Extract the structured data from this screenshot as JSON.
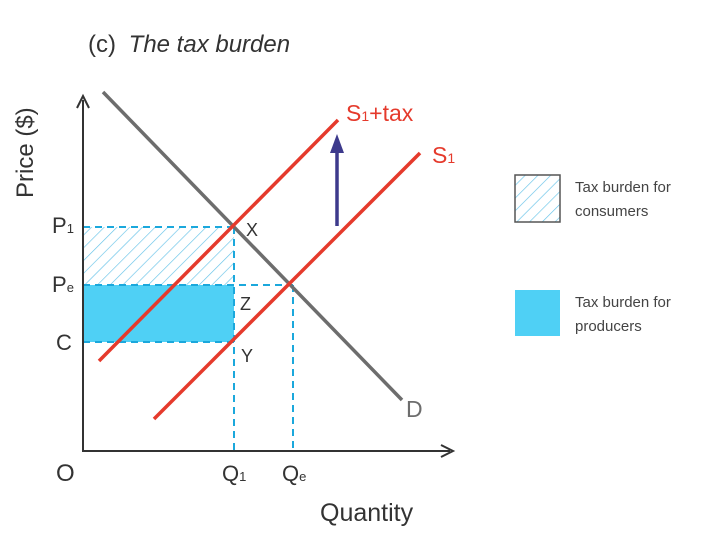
{
  "title": {
    "prefix": "(c)",
    "text": "The tax burden"
  },
  "axes": {
    "y_label": "Price ($)",
    "x_label": "Quantity",
    "origin_label": "O"
  },
  "price_labels": {
    "p1_main": "P",
    "p1_sub": "1",
    "pe_main": "P",
    "pe_sub": "e",
    "c": "C"
  },
  "quantity_labels": {
    "q1_main": "Q",
    "q1_sub": "1",
    "qe_main": "Q",
    "qe_sub": "e"
  },
  "points": {
    "x": "X",
    "z": "Z",
    "y": "Y"
  },
  "curves": {
    "supply_tax_main": "S",
    "supply_tax_sub": "1",
    "supply_tax_suffix": "+tax",
    "supply_main": "S",
    "supply_sub": "1",
    "demand": "D"
  },
  "legend": {
    "consumers_line1": "Tax burden for",
    "consumers_line2": "consumers",
    "producers_line1": "Tax burden for",
    "producers_line2": "producers"
  },
  "colors": {
    "supply": "#e53a2c",
    "demand": "#6d6d6d",
    "axis": "#333333",
    "dashed": "#1ba8dc",
    "producer_fill": "#4fd0f5",
    "consumer_hatch": "#66c3e8",
    "arrow": "#3d3a8c",
    "text": "#333333"
  }
}
